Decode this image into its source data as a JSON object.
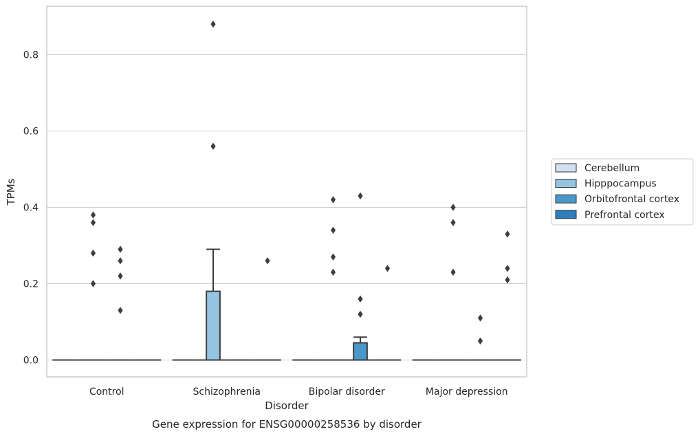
{
  "chart_data": {
    "type": "box",
    "title": "",
    "caption": "Gene expression for ENSG00000258536 by disorder",
    "xlabel": "Disorder",
    "ylabel": "TPMs",
    "ylim": [
      -0.043,
      0.929
    ],
    "yticks": [
      0.0,
      0.2,
      0.4,
      0.6,
      0.8
    ],
    "ytick_labels": [
      "0.0",
      "0.2",
      "0.4",
      "0.6",
      "0.8"
    ],
    "categories": [
      "Control",
      "Schizophrenia",
      "Bipolar disorder",
      "Major depression"
    ],
    "grid": "horizontal",
    "legend_position": "outside-right",
    "series": [
      {
        "name": "Cerebellum",
        "color": "#d0e1f2",
        "boxes": [
          {
            "min": 0,
            "q1": 0,
            "median": 0,
            "q3": 0,
            "max": 0,
            "outliers": []
          },
          {
            "min": 0,
            "q1": 0,
            "median": 0,
            "q3": 0,
            "max": 0,
            "outliers": []
          },
          {
            "min": 0,
            "q1": 0,
            "median": 0,
            "q3": 0,
            "max": 0,
            "outliers": []
          },
          {
            "min": 0,
            "q1": 0,
            "median": 0,
            "q3": 0,
            "max": 0,
            "outliers": []
          }
        ]
      },
      {
        "name": "Hipppocampus",
        "color": "#94c4df",
        "boxes": [
          {
            "min": 0,
            "q1": 0,
            "median": 0,
            "q3": 0,
            "max": 0,
            "outliers": [
              0.2,
              0.28,
              0.36,
              0.38
            ]
          },
          {
            "min": 0,
            "q1": 0,
            "median": 0,
            "q3": 0.18,
            "max": 0.29,
            "outliers": [
              0.56,
              0.88
            ]
          },
          {
            "min": 0,
            "q1": 0,
            "median": 0,
            "q3": 0,
            "max": 0,
            "outliers": [
              0.27,
              0.23,
              0.34,
              0.42
            ]
          },
          {
            "min": 0,
            "q1": 0,
            "median": 0,
            "q3": 0,
            "max": 0,
            "outliers": [
              0.23,
              0.36,
              0.4
            ]
          }
        ]
      },
      {
        "name": "Orbitofrontal cortex",
        "color": "#4a98c9",
        "boxes": [
          {
            "min": 0,
            "q1": 0,
            "median": 0,
            "q3": 0,
            "max": 0,
            "outliers": [
              0.13,
              0.22,
              0.26,
              0.29
            ]
          },
          {
            "min": 0,
            "q1": 0,
            "median": 0,
            "q3": 0,
            "max": 0,
            "outliers": []
          },
          {
            "min": 0,
            "q1": 0,
            "median": 0,
            "q3": 0.045,
            "max": 0.06,
            "outliers": [
              0.12,
              0.16,
              0.43
            ]
          },
          {
            "min": 0,
            "q1": 0,
            "median": 0,
            "q3": 0,
            "max": 0,
            "outliers": [
              0.05,
              0.11
            ]
          }
        ]
      },
      {
        "name": "Prefrontal cortex",
        "color": "#2e7ebc",
        "boxes": [
          {
            "min": 0,
            "q1": 0,
            "median": 0,
            "q3": 0,
            "max": 0,
            "outliers": []
          },
          {
            "min": 0,
            "q1": 0,
            "median": 0,
            "q3": 0,
            "max": 0,
            "outliers": [
              0.26
            ]
          },
          {
            "min": 0,
            "q1": 0,
            "median": 0,
            "q3": 0,
            "max": 0,
            "outliers": [
              0.24
            ]
          },
          {
            "min": 0,
            "q1": 0,
            "median": 0,
            "q3": 0,
            "max": 0,
            "outliers": [
              0.21,
              0.24,
              0.33
            ]
          }
        ]
      }
    ]
  }
}
